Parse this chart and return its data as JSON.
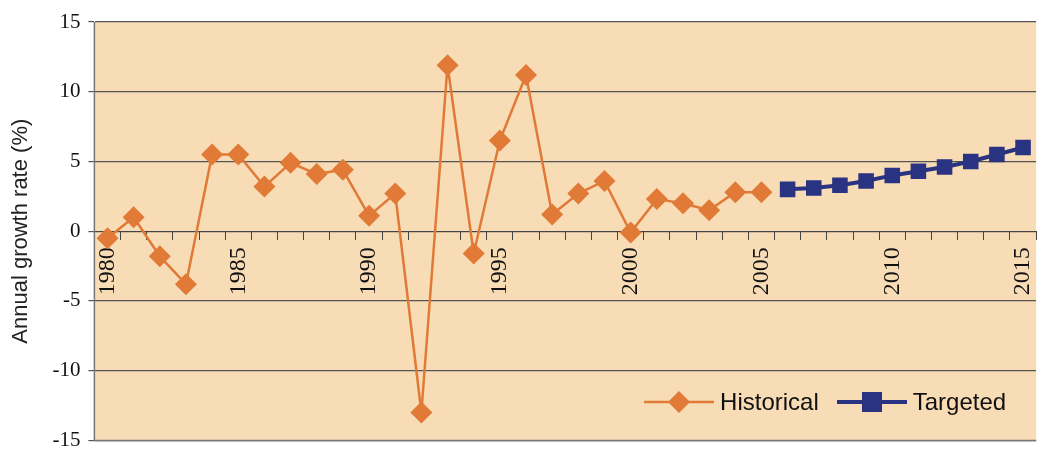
{
  "chart_data": {
    "type": "line",
    "ylabel": "Annual growth rate (%)",
    "categories": [
      "1980",
      null,
      null,
      null,
      null,
      "1985",
      null,
      null,
      null,
      null,
      "1990",
      null,
      null,
      null,
      null,
      "1995",
      null,
      null,
      null,
      null,
      "2000",
      null,
      null,
      null,
      null,
      "2005",
      null,
      null,
      null,
      null,
      "2010",
      null,
      null,
      null,
      null,
      "2015"
    ],
    "series": [
      {
        "name": "Historical",
        "color": "#e07a36",
        "marker": "diamond",
        "values": [
          -0.5,
          1.0,
          -1.8,
          -3.8,
          5.5,
          5.5,
          3.2,
          4.9,
          4.1,
          4.4,
          1.1,
          2.7,
          -13.0,
          11.9,
          -1.6,
          6.5,
          11.2,
          1.2,
          2.7,
          3.6,
          -0.1,
          2.3,
          2.0,
          1.5,
          2.8,
          2.8,
          null,
          null,
          null,
          null,
          null,
          null,
          null,
          null,
          null,
          null
        ]
      },
      {
        "name": "Targeted",
        "color": "#293381",
        "marker": "square",
        "values": [
          null,
          null,
          null,
          null,
          null,
          null,
          null,
          null,
          null,
          null,
          null,
          null,
          null,
          null,
          null,
          null,
          null,
          null,
          null,
          null,
          null,
          null,
          null,
          null,
          null,
          null,
          3.0,
          3.1,
          3.3,
          3.6,
          4.0,
          4.3,
          4.6,
          5.0,
          5.5,
          6.0
        ]
      }
    ],
    "ylim": [
      -15,
      15
    ],
    "yticks": [
      -15,
      -10,
      -5,
      0,
      5,
      10,
      15
    ],
    "grid": "y",
    "legend": "bottom right"
  }
}
